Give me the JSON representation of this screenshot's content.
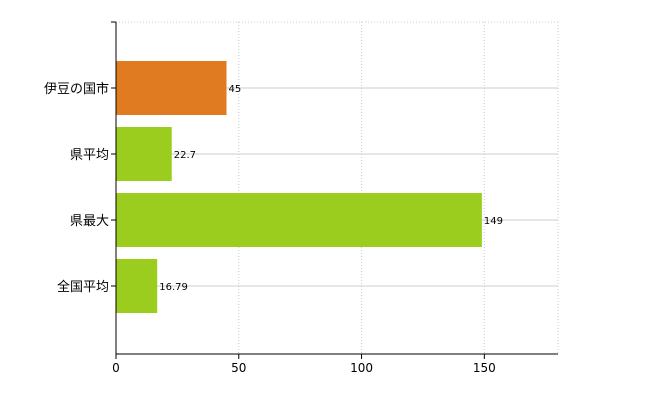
{
  "chart_data": {
    "type": "bar",
    "orientation": "horizontal",
    "categories": [
      "伊豆の国市",
      "県平均",
      "県最大",
      "全国平均"
    ],
    "values": [
      45,
      22.7,
      149,
      16.79
    ],
    "value_labels": [
      "45",
      "22.7",
      "149",
      "16.79"
    ],
    "xlim": [
      0,
      180
    ],
    "xticks": [
      0,
      50,
      100,
      150
    ],
    "xtick_labels": [
      "0",
      "50",
      "100",
      "150"
    ],
    "grid": true,
    "colors": {
      "highlight": "#e07b22",
      "default": "#9acd1e",
      "grid": "#cccccc",
      "axis": "#000000"
    },
    "bar_colors": [
      "#e07b22",
      "#9acd1e",
      "#9acd1e",
      "#9acd1e"
    ]
  }
}
